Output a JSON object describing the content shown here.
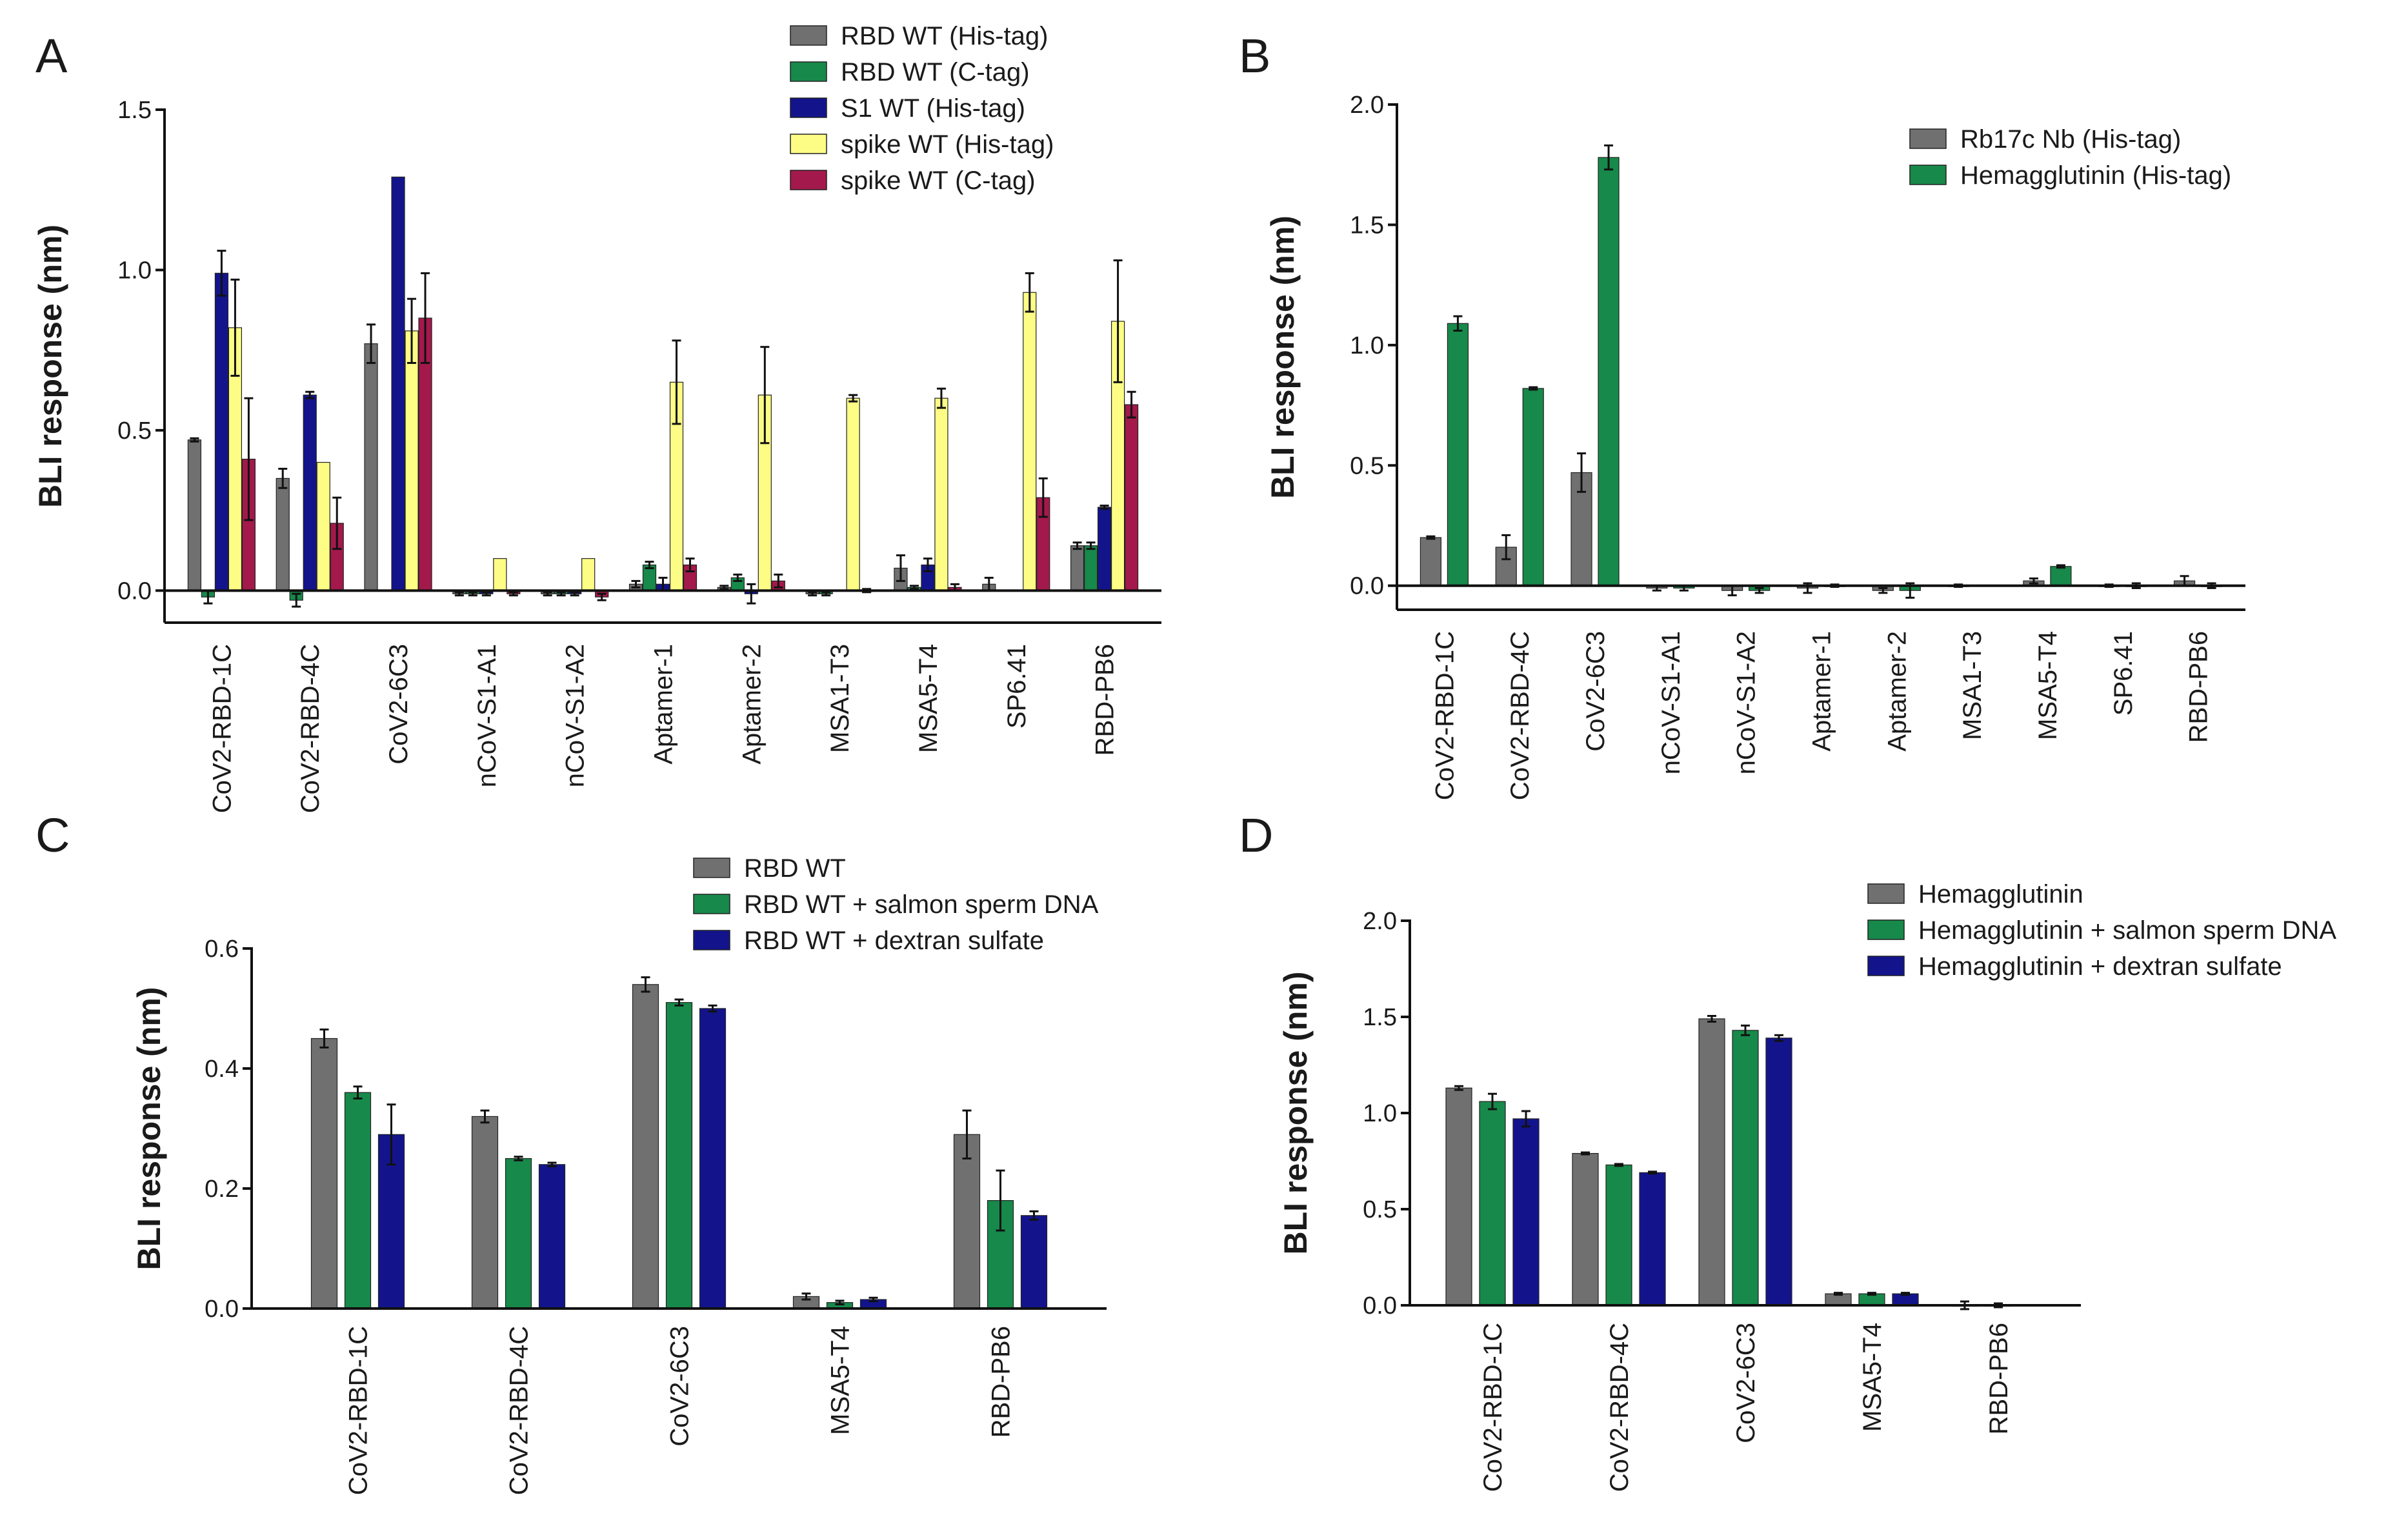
{
  "colors": {
    "gray": "#707070",
    "green": "#17894a",
    "navy": "#13148c",
    "yellow": "#fdfd86",
    "crimson": "#a3194b"
  },
  "chart_data": [
    {
      "id": "A",
      "panel_label": "A",
      "type": "bar",
      "ylabel": "BLI response (nm)",
      "ylim": [
        -0.1,
        1.5
      ],
      "yticks": [
        "0.0",
        "0.5",
        "1.0",
        "1.5"
      ],
      "yticks_values": [
        0,
        0.5,
        1.0,
        1.5
      ],
      "categories": [
        "CoV2-RBD-1C",
        "CoV2-RBD-4C",
        "CoV2-6C3",
        "nCoV-S1-A1",
        "nCoV-S1-A2",
        "Aptamer-1",
        "Aptamer-2",
        "MSA1-T3",
        "MSA5-T4",
        "SP6.41",
        "RBD-PB6"
      ],
      "legend_position": "top-right",
      "series": [
        {
          "name": "RBD WT (His-tag)",
          "color": "#707070",
          "values": [
            0.47,
            0.35,
            0.77,
            -0.01,
            -0.01,
            0.02,
            0.01,
            -0.01,
            0.07,
            0.02,
            0.14
          ],
          "errors": [
            0.005,
            0.03,
            0.06,
            0.005,
            0.005,
            0.01,
            0.005,
            0.005,
            0.04,
            0.02,
            0.01
          ]
        },
        {
          "name": "RBD WT (C-tag)",
          "color": "#17894a",
          "values": [
            -0.02,
            -0.03,
            null,
            -0.01,
            -0.01,
            0.08,
            0.04,
            -0.01,
            0.01,
            null,
            0.14
          ],
          "errors": [
            0.02,
            0.02,
            0,
            0.005,
            0.005,
            0.01,
            0.01,
            0.005,
            0.005,
            0,
            0.01
          ]
        },
        {
          "name": "S1 WT (His-tag)",
          "color": "#13148c",
          "values": [
            0.99,
            0.61,
            1.29,
            -0.01,
            -0.01,
            0.02,
            -0.01,
            null,
            0.08,
            null,
            0.26
          ],
          "errors": [
            0.07,
            0.01,
            0,
            0.005,
            0.005,
            0.02,
            0.03,
            0,
            0.02,
            0,
            0.005
          ]
        },
        {
          "name": "spike WT (His-tag)",
          "color": "#fdfd86",
          "values": [
            0.82,
            0.4,
            0.81,
            0.1,
            0.1,
            0.65,
            0.61,
            0.6,
            0.6,
            0.93,
            0.84
          ],
          "errors": [
            0.15,
            0,
            0.1,
            0,
            0,
            0.13,
            0.15,
            0.01,
            0.03,
            0.06,
            0.19
          ]
        },
        {
          "name": "spike WT (C-tag)",
          "color": "#a3194b",
          "values": [
            0.41,
            0.21,
            0.85,
            -0.01,
            -0.02,
            0.08,
            0.03,
            0.0,
            0.01,
            0.29,
            0.58
          ],
          "errors": [
            0.19,
            0.08,
            0.14,
            0.005,
            0.01,
            0.02,
            0.02,
            0.005,
            0.01,
            0.06,
            0.04
          ]
        }
      ]
    },
    {
      "id": "B",
      "panel_label": "B",
      "type": "bar",
      "ylabel": "BLI response (nm)",
      "ylim": [
        -0.1,
        2.0
      ],
      "yticks": [
        "0.0",
        "0.5",
        "1.0",
        "1.5",
        "2.0"
      ],
      "yticks_values": [
        0,
        0.5,
        1.0,
        1.5,
        2.0
      ],
      "categories": [
        "CoV2-RBD-1C",
        "CoV2-RBD-4C",
        "CoV2-6C3",
        "nCoV-S1-A1",
        "nCoV-S1-A2",
        "Aptamer-1",
        "Aptamer-2",
        "MSA1-T3",
        "MSA5-T4",
        "SP6.41",
        "RBD-PB6"
      ],
      "legend_position": "top-right",
      "series": [
        {
          "name": "Rb17c Nb (His-tag)",
          "color": "#707070",
          "values": [
            0.2,
            0.16,
            0.47,
            -0.01,
            -0.02,
            -0.01,
            -0.02,
            0.0,
            0.02,
            0.0,
            0.02
          ],
          "errors": [
            0.005,
            0.05,
            0.08,
            0.01,
            0.02,
            0.02,
            0.01,
            0.005,
            0.01,
            0.005,
            0.02
          ]
        },
        {
          "name": "Hemagglutinin (His-tag)",
          "color": "#17894a",
          "values": [
            1.09,
            0.82,
            1.78,
            -0.01,
            -0.02,
            0.0,
            -0.02,
            null,
            0.08,
            0.0,
            0.0
          ],
          "errors": [
            0.03,
            0.005,
            0.05,
            0.01,
            0.01,
            0.005,
            0.03,
            0,
            0.005,
            0.01,
            0.01
          ]
        }
      ]
    },
    {
      "id": "C",
      "panel_label": "C",
      "type": "bar",
      "ylabel": "BLI response (nm)",
      "ylim": [
        0,
        0.6
      ],
      "yticks": [
        "0.0",
        "0.2",
        "0.4",
        "0.6"
      ],
      "yticks_values": [
        0,
        0.2,
        0.4,
        0.6
      ],
      "categories": [
        "CoV2-RBD-1C",
        "CoV2-RBD-4C",
        "CoV2-6C3",
        "MSA5-T4",
        "RBD-PB6"
      ],
      "legend_position": "top-right",
      "series": [
        {
          "name": "RBD WT",
          "color": "#707070",
          "values": [
            0.45,
            0.32,
            0.54,
            0.02,
            0.29
          ],
          "errors": [
            0.015,
            0.01,
            0.012,
            0.005,
            0.04
          ]
        },
        {
          "name": "RBD WT + salmon sperm DNA",
          "color": "#17894a",
          "values": [
            0.36,
            0.25,
            0.51,
            0.01,
            0.18
          ],
          "errors": [
            0.01,
            0.003,
            0.005,
            0.003,
            0.05
          ]
        },
        {
          "name": "RBD WT + dextran sulfate",
          "color": "#13148c",
          "values": [
            0.29,
            0.24,
            0.5,
            0.015,
            0.155
          ],
          "errors": [
            0.05,
            0.003,
            0.005,
            0.003,
            0.007
          ]
        }
      ]
    },
    {
      "id": "D",
      "panel_label": "D",
      "type": "bar",
      "ylabel": "BLI response (nm)",
      "ylim": [
        0,
        2.0
      ],
      "yticks": [
        "0.0",
        "0.5",
        "1.0",
        "1.5",
        "2.0"
      ],
      "yticks_values": [
        0,
        0.5,
        1.0,
        1.5,
        2.0
      ],
      "categories": [
        "CoV2-RBD-1C",
        "CoV2-RBD-4C",
        "CoV2-6C3",
        "MSA5-T4",
        "RBD-PB6"
      ],
      "legend_position": "top-right",
      "series": [
        {
          "name": "Hemagglutinin",
          "color": "#707070",
          "values": [
            1.13,
            0.79,
            1.49,
            0.06,
            0.0
          ],
          "errors": [
            0.01,
            0.005,
            0.015,
            0.005,
            0.02
          ]
        },
        {
          "name": "Hemagglutinin + salmon sperm DNA",
          "color": "#17894a",
          "values": [
            1.06,
            0.73,
            1.43,
            0.06,
            0.0
          ],
          "errors": [
            0.04,
            0.005,
            0.025,
            0.005,
            0.01
          ]
        },
        {
          "name": "Hemagglutinin + dextran sulfate",
          "color": "#13148c",
          "values": [
            0.97,
            0.69,
            1.39,
            0.06,
            null
          ],
          "errors": [
            0.04,
            0.005,
            0.015,
            0.005,
            0
          ]
        }
      ]
    }
  ]
}
